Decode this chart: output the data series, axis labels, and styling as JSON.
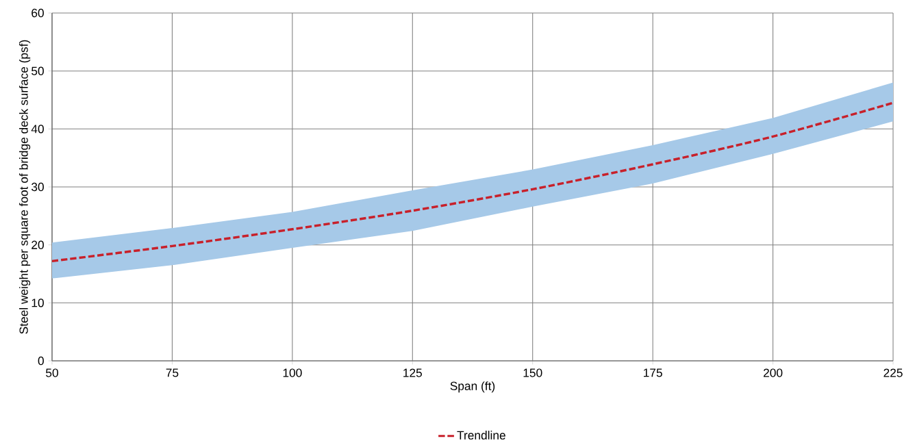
{
  "chart_data": {
    "type": "line",
    "xlabel": "Span (ft)",
    "ylabel": "Steel weight per square foot of bridge deck surface (psf)",
    "x": [
      50,
      75,
      100,
      125,
      150,
      175,
      200,
      225
    ],
    "series": [
      {
        "name": "Trendline",
        "color": "#c8202a",
        "line_style": "dashed",
        "values": [
          17.2,
          19.8,
          22.7,
          25.9,
          29.6,
          33.9,
          38.7,
          44.5
        ],
        "lower": [
          14.2,
          16.5,
          19.5,
          22.4,
          26.6,
          30.6,
          35.7,
          41.3
        ],
        "upper": [
          20.4,
          22.9,
          25.7,
          29.4,
          33.0,
          37.2,
          41.9,
          48.0
        ]
      }
    ],
    "xlim": [
      50,
      225
    ],
    "ylim": [
      0,
      60
    ],
    "xticks": [
      50,
      75,
      100,
      125,
      150,
      175,
      200,
      225
    ],
    "yticks": [
      0,
      10,
      20,
      30,
      40,
      50,
      60
    ],
    "grid": true,
    "legend": "bottom"
  }
}
